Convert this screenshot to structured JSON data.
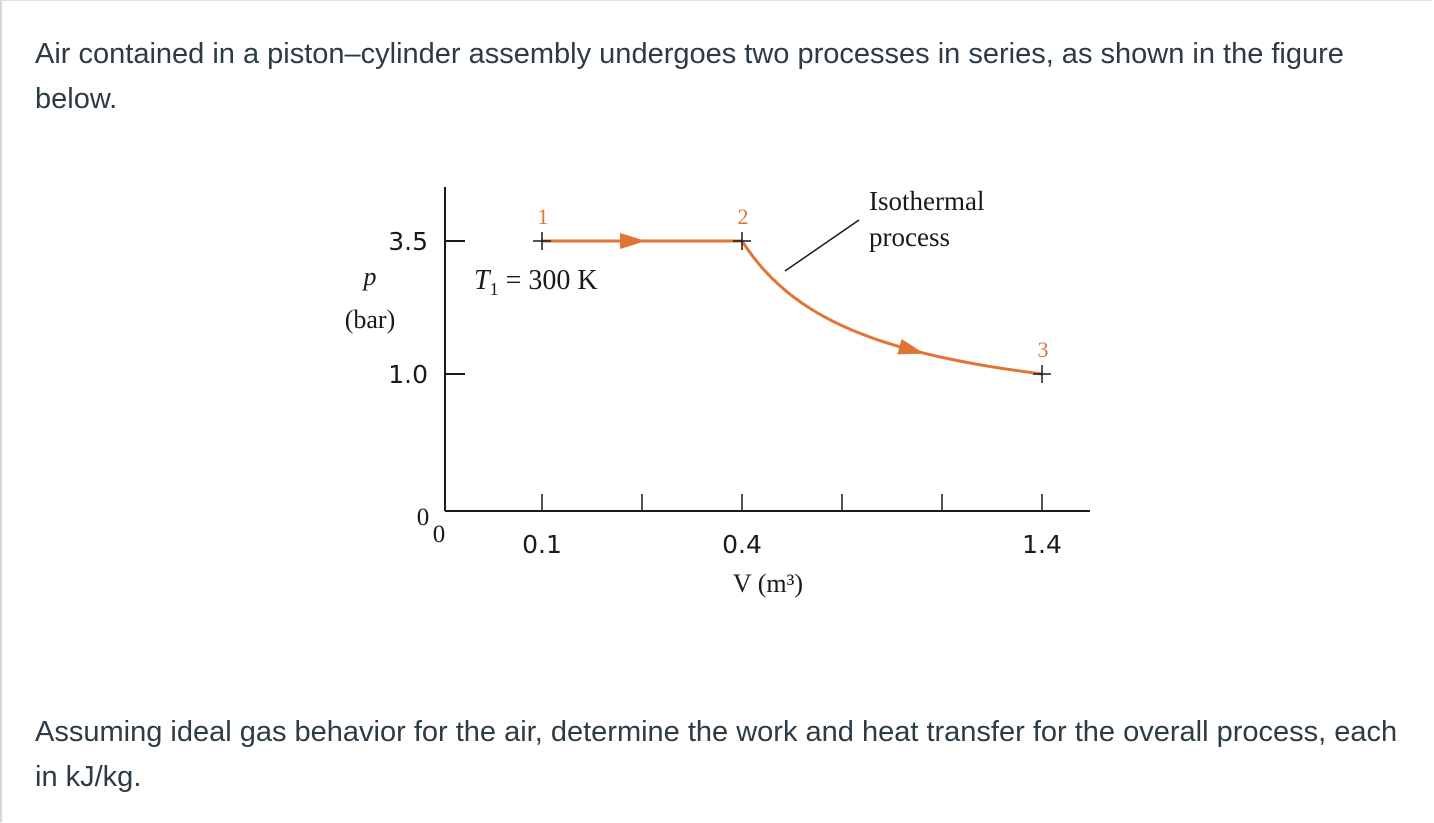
{
  "problem": {
    "intro": "Air contained in a piston–cylinder assembly undergoes two processes in series, as shown in the figure below.",
    "question": "Assuming ideal gas behavior for the air, determine the work and heat transfer for the overall process, each in kJ/kg."
  },
  "chart_data": {
    "type": "line",
    "title": "",
    "xlabel": "V (m³)",
    "ylabel_symbol": "p",
    "ylabel_unit": "(bar)",
    "xlim": [
      0,
      1.4
    ],
    "ylim": [
      0,
      4.2
    ],
    "x_ticks": [
      0.2,
      0.4,
      0.6,
      0.8,
      1.0,
      1.2,
      1.4
    ],
    "x_tick_labels": [
      {
        "x": 0.1,
        "label": "0.1"
      },
      {
        "x": 0.4,
        "label": "0.4"
      },
      {
        "x": 1.4,
        "label": "1.4"
      }
    ],
    "y_tick_labels": [
      {
        "y": 3.5,
        "label": "3.5"
      },
      {
        "y": 1.0,
        "label": "1.0"
      }
    ],
    "origin_labels": {
      "y": "0",
      "x": "0"
    },
    "states": [
      {
        "label": "1",
        "x": 0.1,
        "y": 3.5
      },
      {
        "label": "2",
        "x": 0.4,
        "y": 3.5
      },
      {
        "label": "3",
        "x": 1.4,
        "y": 1.0
      }
    ],
    "series": [
      {
        "process": "1-2 constant pressure",
        "x": [
          0.1,
          0.4
        ],
        "y": [
          3.5,
          3.5
        ]
      },
      {
        "process": "2-3 isothermal",
        "curve": "pV = const",
        "x": [
          0.4,
          1.4
        ],
        "y": [
          3.5,
          1.0
        ]
      }
    ],
    "annotations": {
      "t1": "T",
      "t1_sub": "1",
      "t1_rest": " = 300 K",
      "isothermal_line1": "Isothermal",
      "isothermal_line2": "process"
    },
    "colors": {
      "process": "#e07535",
      "axes": "#1a1a1a",
      "text": "#1a1a1a"
    },
    "grid": false
  }
}
